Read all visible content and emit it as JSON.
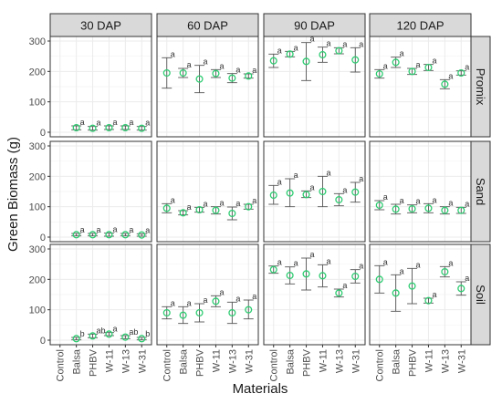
{
  "chart_data": {
    "type": "scatter",
    "xlabel": "Materials",
    "ylabel": "Green Biomass (g)",
    "ylim": [
      0,
      300
    ],
    "yticks": [
      0,
      100,
      200,
      300
    ],
    "categories": [
      "Control",
      "Balsa",
      "PHBV",
      "W-11",
      "W-13",
      "W-31"
    ],
    "columns": [
      "30 DAP",
      "60 DAP",
      "90 DAP",
      "120 DAP"
    ],
    "rows": [
      "Promix",
      "Sand",
      "Soil"
    ],
    "grid": true,
    "colors": {
      "point": "#2ecc71",
      "errorbar": "#555555",
      "strip_bg": "#d9d9d9",
      "panel_border": "#333333",
      "grid": "#ebebeb"
    },
    "panels": [
      {
        "row": "Promix",
        "col": "30 DAP",
        "points": [
          {
            "cat": "Balsa",
            "y": 15,
            "lo": 8,
            "hi": 21,
            "label": "a"
          },
          {
            "cat": "PHBV",
            "y": 13,
            "lo": 7,
            "hi": 19,
            "label": "a"
          },
          {
            "cat": "W-11",
            "y": 15,
            "lo": 9,
            "hi": 21,
            "label": "a"
          },
          {
            "cat": "W-13",
            "y": 15,
            "lo": 9,
            "hi": 21,
            "label": "a"
          },
          {
            "cat": "W-31",
            "y": 13,
            "lo": 7,
            "hi": 19,
            "label": "a"
          }
        ]
      },
      {
        "row": "Promix",
        "col": "60 DAP",
        "points": [
          {
            "cat": "Control",
            "y": 195,
            "lo": 145,
            "hi": 245,
            "label": "a"
          },
          {
            "cat": "Balsa",
            "y": 195,
            "lo": 180,
            "hi": 210,
            "label": "a"
          },
          {
            "cat": "PHBV",
            "y": 175,
            "lo": 130,
            "hi": 220,
            "label": "a"
          },
          {
            "cat": "W-11",
            "y": 193,
            "lo": 180,
            "hi": 206,
            "label": "a"
          },
          {
            "cat": "W-13",
            "y": 178,
            "lo": 163,
            "hi": 193,
            "label": "a"
          },
          {
            "cat": "W-31",
            "y": 185,
            "lo": 178,
            "hi": 192,
            "label": "a"
          }
        ]
      },
      {
        "row": "Promix",
        "col": "90 DAP",
        "points": [
          {
            "cat": "Control",
            "y": 235,
            "lo": 213,
            "hi": 257,
            "label": "a"
          },
          {
            "cat": "Balsa",
            "y": 257,
            "lo": 248,
            "hi": 266,
            "label": "a"
          },
          {
            "cat": "PHBV",
            "y": 233,
            "lo": 170,
            "hi": 295,
            "label": "a"
          },
          {
            "cat": "W-11",
            "y": 255,
            "lo": 230,
            "hi": 280,
            "label": "a"
          },
          {
            "cat": "W-13",
            "y": 268,
            "lo": 258,
            "hi": 278,
            "label": "a"
          },
          {
            "cat": "W-31",
            "y": 238,
            "lo": 198,
            "hi": 278,
            "label": "a"
          }
        ]
      },
      {
        "row": "Promix",
        "col": "120 DAP",
        "points": [
          {
            "cat": "Control",
            "y": 192,
            "lo": 178,
            "hi": 206,
            "label": "a"
          },
          {
            "cat": "Balsa",
            "y": 230,
            "lo": 213,
            "hi": 247,
            "label": "a"
          },
          {
            "cat": "PHBV",
            "y": 200,
            "lo": 190,
            "hi": 210,
            "label": "a"
          },
          {
            "cat": "W-11",
            "y": 213,
            "lo": 203,
            "hi": 223,
            "label": "a"
          },
          {
            "cat": "W-13",
            "y": 158,
            "lo": 143,
            "hi": 173,
            "label": "a"
          },
          {
            "cat": "W-31",
            "y": 195,
            "lo": 188,
            "hi": 202,
            "label": "a"
          }
        ]
      },
      {
        "row": "Sand",
        "col": "30 DAP",
        "points": [
          {
            "cat": "Balsa",
            "y": 8,
            "lo": 4,
            "hi": 12,
            "label": "a"
          },
          {
            "cat": "PHBV",
            "y": 8,
            "lo": 4,
            "hi": 12,
            "label": "a"
          },
          {
            "cat": "W-11",
            "y": 8,
            "lo": 3,
            "hi": 13,
            "label": "a"
          },
          {
            "cat": "W-13",
            "y": 8,
            "lo": 4,
            "hi": 12,
            "label": "a"
          },
          {
            "cat": "W-31",
            "y": 7,
            "lo": 3,
            "hi": 11,
            "label": "a"
          }
        ]
      },
      {
        "row": "Sand",
        "col": "60 DAP",
        "points": [
          {
            "cat": "Control",
            "y": 95,
            "lo": 80,
            "hi": 110,
            "label": "a"
          },
          {
            "cat": "Balsa",
            "y": 80,
            "lo": 73,
            "hi": 87,
            "label": "a"
          },
          {
            "cat": "PHBV",
            "y": 90,
            "lo": 82,
            "hi": 98,
            "label": "a"
          },
          {
            "cat": "W-11",
            "y": 88,
            "lo": 76,
            "hi": 100,
            "label": "a"
          },
          {
            "cat": "W-13",
            "y": 78,
            "lo": 57,
            "hi": 99,
            "label": "a"
          },
          {
            "cat": "W-31",
            "y": 100,
            "lo": 92,
            "hi": 108,
            "label": "a"
          }
        ]
      },
      {
        "row": "Sand",
        "col": "90 DAP",
        "points": [
          {
            "cat": "Control",
            "y": 138,
            "lo": 108,
            "hi": 170,
            "label": "a"
          },
          {
            "cat": "Balsa",
            "y": 145,
            "lo": 100,
            "hi": 192,
            "label": "a"
          },
          {
            "cat": "PHBV",
            "y": 140,
            "lo": 130,
            "hi": 152,
            "label": "a"
          },
          {
            "cat": "W-11",
            "y": 150,
            "lo": 100,
            "hi": 200,
            "label": "a"
          },
          {
            "cat": "W-13",
            "y": 123,
            "lo": 103,
            "hi": 143,
            "label": "a"
          },
          {
            "cat": "W-31",
            "y": 148,
            "lo": 115,
            "hi": 180,
            "label": "a"
          }
        ]
      },
      {
        "row": "Sand",
        "col": "120 DAP",
        "points": [
          {
            "cat": "Control",
            "y": 105,
            "lo": 90,
            "hi": 120,
            "label": "a"
          },
          {
            "cat": "Balsa",
            "y": 92,
            "lo": 76,
            "hi": 108,
            "label": "a"
          },
          {
            "cat": "PHBV",
            "y": 93,
            "lo": 80,
            "hi": 106,
            "label": "a"
          },
          {
            "cat": "W-11",
            "y": 95,
            "lo": 80,
            "hi": 110,
            "label": "a"
          },
          {
            "cat": "W-13",
            "y": 88,
            "lo": 76,
            "hi": 100,
            "label": "a"
          },
          {
            "cat": "W-31",
            "y": 88,
            "lo": 78,
            "hi": 98,
            "label": "a"
          }
        ]
      },
      {
        "row": "Soil",
        "col": "30 DAP",
        "points": [
          {
            "cat": "Balsa",
            "y": 5,
            "lo": 1,
            "hi": 9,
            "label": "b"
          },
          {
            "cat": "PHBV",
            "y": 14,
            "lo": 8,
            "hi": 20,
            "label": "ab"
          },
          {
            "cat": "W-11",
            "y": 20,
            "lo": 15,
            "hi": 25,
            "label": "a"
          },
          {
            "cat": "W-13",
            "y": 10,
            "lo": 5,
            "hi": 15,
            "label": "ab"
          },
          {
            "cat": "W-31",
            "y": 5,
            "lo": 1,
            "hi": 9,
            "label": "b"
          }
        ]
      },
      {
        "row": "Soil",
        "col": "60 DAP",
        "points": [
          {
            "cat": "Control",
            "y": 90,
            "lo": 70,
            "hi": 110,
            "label": "a"
          },
          {
            "cat": "Balsa",
            "y": 82,
            "lo": 55,
            "hi": 110,
            "label": "a"
          },
          {
            "cat": "PHBV",
            "y": 90,
            "lo": 60,
            "hi": 120,
            "label": "a"
          },
          {
            "cat": "W-11",
            "y": 128,
            "lo": 110,
            "hi": 146,
            "label": "a"
          },
          {
            "cat": "W-13",
            "y": 90,
            "lo": 55,
            "hi": 125,
            "label": "a"
          },
          {
            "cat": "W-31",
            "y": 100,
            "lo": 70,
            "hi": 132,
            "label": "a"
          }
        ]
      },
      {
        "row": "Soil",
        "col": "90 DAP",
        "points": [
          {
            "cat": "Control",
            "y": 232,
            "lo": 220,
            "hi": 244,
            "label": "a"
          },
          {
            "cat": "Balsa",
            "y": 213,
            "lo": 185,
            "hi": 241,
            "label": "a"
          },
          {
            "cat": "PHBV",
            "y": 218,
            "lo": 165,
            "hi": 270,
            "label": "a"
          },
          {
            "cat": "W-11",
            "y": 212,
            "lo": 175,
            "hi": 248,
            "label": "a"
          },
          {
            "cat": "W-13",
            "y": 155,
            "lo": 142,
            "hi": 168,
            "label": "a"
          },
          {
            "cat": "W-31",
            "y": 210,
            "lo": 188,
            "hi": 232,
            "label": "a"
          }
        ]
      },
      {
        "row": "Soil",
        "col": "120 DAP",
        "points": [
          {
            "cat": "Control",
            "y": 200,
            "lo": 155,
            "hi": 245,
            "label": "a"
          },
          {
            "cat": "Balsa",
            "y": 155,
            "lo": 95,
            "hi": 215,
            "label": "a"
          },
          {
            "cat": "PHBV",
            "y": 178,
            "lo": 120,
            "hi": 236,
            "label": "a"
          },
          {
            "cat": "W-11",
            "y": 130,
            "lo": 122,
            "hi": 138,
            "label": "a"
          },
          {
            "cat": "W-13",
            "y": 225,
            "lo": 208,
            "hi": 242,
            "label": "a"
          },
          {
            "cat": "W-31",
            "y": 170,
            "lo": 148,
            "hi": 192,
            "label": "a"
          }
        ]
      }
    ]
  }
}
